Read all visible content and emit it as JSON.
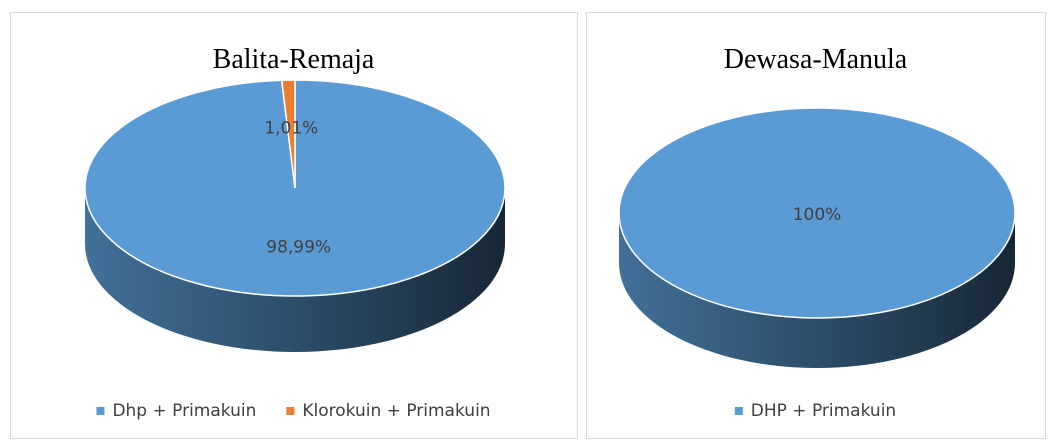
{
  "chart_data": [
    {
      "type": "pie",
      "title": "Balita-Remaja",
      "categories": [
        "Dhp + Primakuin",
        "Klorokuin + Primakuin"
      ],
      "values": [
        98.99,
        1.01
      ],
      "value_labels": [
        "98,99%",
        "1,01%"
      ],
      "colors": [
        "#5b9bd5",
        "#ed7d31"
      ],
      "legend": "bottom"
    },
    {
      "type": "pie",
      "title": "Dewasa-Manula",
      "categories": [
        "DHP + Primakuin"
      ],
      "values": [
        100
      ],
      "value_labels": [
        "100%"
      ],
      "colors": [
        "#5b9bd5"
      ],
      "legend": "bottom"
    }
  ]
}
